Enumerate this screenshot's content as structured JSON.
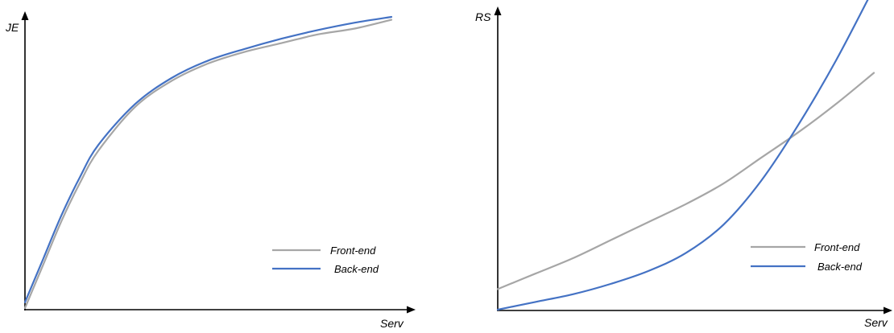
{
  "colors": {
    "front_end": "#a6a6a6",
    "back_end": "#4472c4"
  },
  "chart_data": [
    {
      "type": "line",
      "title": "",
      "xlabel": "Serv",
      "ylabel": "JE",
      "xlim": [
        0,
        1
      ],
      "ylim": [
        0,
        1
      ],
      "grid": false,
      "legend_position": "bottom-right",
      "series": [
        {
          "name": "Front-end",
          "color_key": "front_end",
          "x": [
            0.0,
            0.05,
            0.1,
            0.15,
            0.2,
            0.3,
            0.4,
            0.5,
            0.6,
            0.7,
            0.8,
            0.9,
            1.0
          ],
          "y": [
            0.0,
            0.15,
            0.3,
            0.43,
            0.54,
            0.69,
            0.78,
            0.84,
            0.88,
            0.91,
            0.94,
            0.96,
            0.99
          ]
        },
        {
          "name": "Back-end",
          "color_key": "back_end",
          "x": [
            0.0,
            0.05,
            0.1,
            0.15,
            0.2,
            0.3,
            0.4,
            0.5,
            0.6,
            0.7,
            0.8,
            0.9,
            1.0
          ],
          "y": [
            0.02,
            0.17,
            0.32,
            0.45,
            0.56,
            0.7,
            0.79,
            0.85,
            0.89,
            0.925,
            0.955,
            0.98,
            1.0
          ]
        }
      ]
    },
    {
      "type": "line",
      "title": "",
      "xlabel": "Serv",
      "ylabel": "RS",
      "xlim": [
        0,
        1
      ],
      "ylim": [
        0,
        1
      ],
      "grid": false,
      "legend_position": "bottom-right",
      "series": [
        {
          "name": "Front-end",
          "color_key": "front_end",
          "x": [
            0.0,
            0.1,
            0.2,
            0.3,
            0.4,
            0.5,
            0.6,
            0.7,
            0.8,
            0.9,
            1.0
          ],
          "y": [
            0.08,
            0.14,
            0.2,
            0.27,
            0.34,
            0.41,
            0.49,
            0.59,
            0.69,
            0.8,
            0.92
          ]
        },
        {
          "name": "Back-end",
          "color_key": "back_end",
          "x": [
            0.0,
            0.1,
            0.2,
            0.3,
            0.4,
            0.5,
            0.6,
            0.7,
            0.8,
            0.9,
            1.0
          ],
          "y": [
            0.0,
            0.03,
            0.06,
            0.1,
            0.15,
            0.22,
            0.33,
            0.5,
            0.72,
            0.97,
            1.25
          ]
        }
      ]
    }
  ]
}
